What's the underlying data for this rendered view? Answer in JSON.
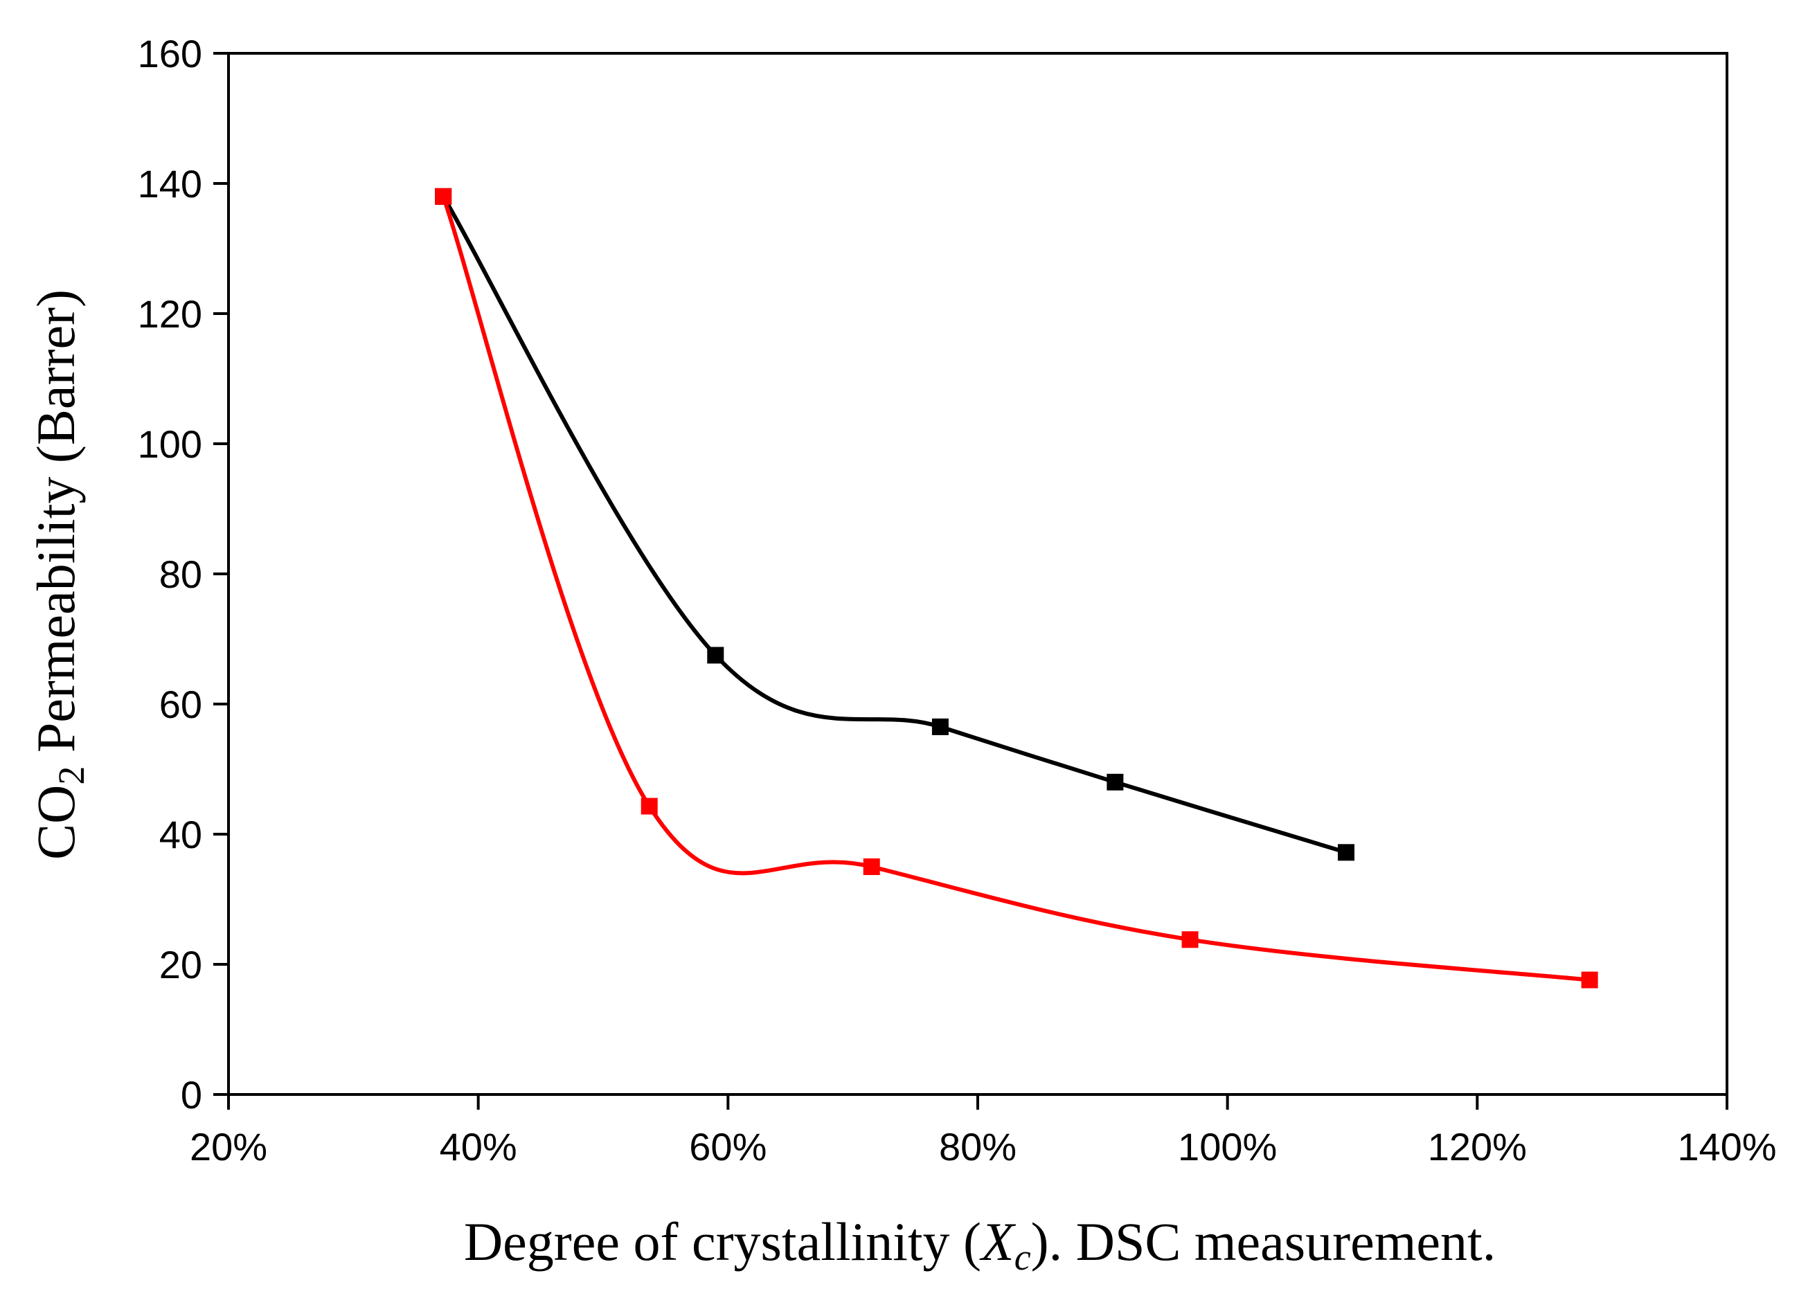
{
  "chart_data": {
    "type": "line",
    "title": "",
    "xlabel": {
      "prefix": "Degree of crystallinity (",
      "var": "X",
      "sub": "c",
      "suffix": "). DSC measurement."
    },
    "ylabel": {
      "prefix": "CO",
      "sub": "2",
      "suffix": " Permeability (Barrer)"
    },
    "xlim": [
      0.2,
      1.4
    ],
    "ylim": [
      0,
      160
    ],
    "x_ticks": [
      0.2,
      0.4,
      0.6,
      0.8,
      1.0,
      1.2,
      1.4
    ],
    "x_tick_labels": [
      "20%",
      "40%",
      "60%",
      "80%",
      "100%",
      "120%",
      "140%"
    ],
    "y_ticks": [
      0,
      20,
      40,
      60,
      80,
      100,
      120,
      140,
      160
    ],
    "y_tick_labels": [
      "0",
      "20",
      "40",
      "60",
      "80",
      "100",
      "120",
      "140",
      "160"
    ],
    "grid": false,
    "legend": "none",
    "series": [
      {
        "name": "black series",
        "color": "#000000",
        "marker": "square",
        "smooth": true,
        "points": [
          [
            0.372,
            138
          ],
          [
            0.59,
            67.5
          ],
          [
            0.77,
            56.5
          ],
          [
            0.91,
            48
          ],
          [
            1.095,
            37.2
          ]
        ]
      },
      {
        "name": "red series",
        "color": "#ff0000",
        "marker": "square",
        "smooth": true,
        "points": [
          [
            0.372,
            138
          ],
          [
            0.537,
            44.3
          ],
          [
            0.715,
            35
          ],
          [
            0.97,
            23.8
          ],
          [
            1.29,
            17.6
          ]
        ]
      }
    ]
  }
}
